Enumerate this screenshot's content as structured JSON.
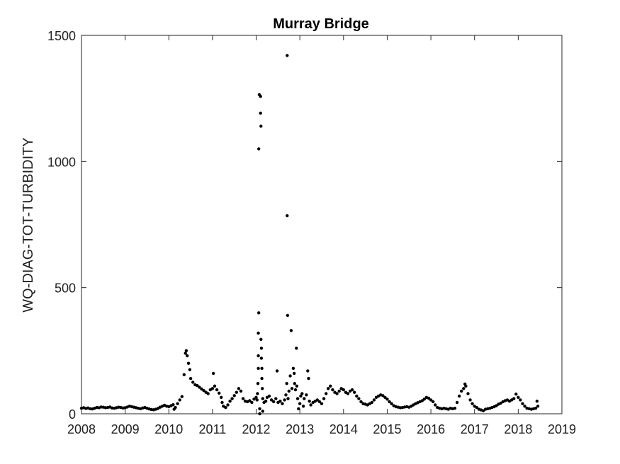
{
  "chart_data": {
    "type": "scatter",
    "title": "Murray Bridge",
    "xlabel": "",
    "ylabel": "WQ-DIAG-TOT-TURBIDITY",
    "xlim": [
      2008,
      2019
    ],
    "ylim": [
      0,
      1500
    ],
    "xticks": [
      "2008",
      "2009",
      "2010",
      "2011",
      "2012",
      "2013",
      "2014",
      "2015",
      "2016",
      "2017",
      "2018",
      "2019"
    ],
    "yticks": [
      "0",
      "500",
      "1000",
      "1500"
    ],
    "grid": false,
    "marker_color": "#000000",
    "series": [
      {
        "points": [
          [
            2008.0,
            22
          ],
          [
            2008.05,
            24
          ],
          [
            2008.1,
            21
          ],
          [
            2008.15,
            23
          ],
          [
            2008.2,
            20
          ],
          [
            2008.25,
            19
          ],
          [
            2008.3,
            22
          ],
          [
            2008.35,
            25
          ],
          [
            2008.4,
            24
          ],
          [
            2008.45,
            27
          ],
          [
            2008.5,
            26
          ],
          [
            2008.55,
            24
          ],
          [
            2008.6,
            25
          ],
          [
            2008.65,
            27
          ],
          [
            2008.7,
            23
          ],
          [
            2008.75,
            22
          ],
          [
            2008.8,
            24
          ],
          [
            2008.85,
            26
          ],
          [
            2008.9,
            25
          ],
          [
            2008.95,
            23
          ],
          [
            2009.0,
            24
          ],
          [
            2009.05,
            27
          ],
          [
            2009.1,
            30
          ],
          [
            2009.15,
            28
          ],
          [
            2009.2,
            26
          ],
          [
            2009.25,
            24
          ],
          [
            2009.3,
            22
          ],
          [
            2009.35,
            20
          ],
          [
            2009.4,
            23
          ],
          [
            2009.45,
            25
          ],
          [
            2009.5,
            22
          ],
          [
            2009.55,
            19
          ],
          [
            2009.6,
            17
          ],
          [
            2009.65,
            16
          ],
          [
            2009.7,
            18
          ],
          [
            2009.75,
            21
          ],
          [
            2009.8,
            26
          ],
          [
            2009.85,
            30
          ],
          [
            2009.9,
            34
          ],
          [
            2009.95,
            30
          ],
          [
            2010.0,
            28
          ],
          [
            2010.05,
            32
          ],
          [
            2010.1,
            36
          ],
          [
            2010.12,
            18
          ],
          [
            2010.15,
            25
          ],
          [
            2010.2,
            40
          ],
          [
            2010.25,
            55
          ],
          [
            2010.3,
            68
          ],
          [
            2010.35,
            155
          ],
          [
            2010.38,
            240
          ],
          [
            2010.4,
            250
          ],
          [
            2010.42,
            230
          ],
          [
            2010.45,
            200
          ],
          [
            2010.48,
            175
          ],
          [
            2010.5,
            140
          ],
          [
            2010.55,
            125
          ],
          [
            2010.6,
            115
          ],
          [
            2010.65,
            112
          ],
          [
            2010.7,
            105
          ],
          [
            2010.75,
            98
          ],
          [
            2010.8,
            92
          ],
          [
            2010.85,
            85
          ],
          [
            2010.9,
            80
          ],
          [
            2010.95,
            95
          ],
          [
            2011.0,
            100
          ],
          [
            2011.02,
            160
          ],
          [
            2011.05,
            110
          ],
          [
            2011.1,
            95
          ],
          [
            2011.15,
            82
          ],
          [
            2011.2,
            65
          ],
          [
            2011.22,
            45
          ],
          [
            2011.25,
            30
          ],
          [
            2011.3,
            25
          ],
          [
            2011.35,
            35
          ],
          [
            2011.4,
            50
          ],
          [
            2011.45,
            60
          ],
          [
            2011.5,
            72
          ],
          [
            2011.55,
            85
          ],
          [
            2011.6,
            100
          ],
          [
            2011.65,
            90
          ],
          [
            2011.7,
            60
          ],
          [
            2011.75,
            50
          ],
          [
            2011.8,
            48
          ],
          [
            2011.85,
            52
          ],
          [
            2011.9,
            45
          ],
          [
            2011.95,
            58
          ],
          [
            2012.0,
            65
          ],
          [
            2012.02,
            55
          ],
          [
            2012.03,
            80
          ],
          [
            2012.04,
            120
          ],
          [
            2012.05,
            180
          ],
          [
            2012.05,
            230
          ],
          [
            2012.05,
            320
          ],
          [
            2012.06,
            400
          ],
          [
            2012.06,
            1050
          ],
          [
            2012.07,
            1265
          ],
          [
            2012.08,
            20
          ],
          [
            2012.08,
            0
          ],
          [
            2012.1,
            1258
          ],
          [
            2012.1,
            1192
          ],
          [
            2012.11,
            1140
          ],
          [
            2012.11,
            295
          ],
          [
            2012.12,
            260
          ],
          [
            2012.12,
            220
          ],
          [
            2012.13,
            180
          ],
          [
            2012.13,
            140
          ],
          [
            2012.14,
            100
          ],
          [
            2012.15,
            60
          ],
          [
            2012.15,
            10
          ],
          [
            2012.18,
            45
          ],
          [
            2012.22,
            50
          ],
          [
            2012.25,
            65
          ],
          [
            2012.3,
            70
          ],
          [
            2012.35,
            55
          ],
          [
            2012.4,
            48
          ],
          [
            2012.45,
            60
          ],
          [
            2012.48,
            170
          ],
          [
            2012.5,
            45
          ],
          [
            2012.55,
            50
          ],
          [
            2012.6,
            40
          ],
          [
            2012.65,
            55
          ],
          [
            2012.68,
            75
          ],
          [
            2012.7,
            120
          ],
          [
            2012.71,
            1420
          ],
          [
            2012.71,
            785
          ],
          [
            2012.72,
            390
          ],
          [
            2012.73,
            60
          ],
          [
            2012.75,
            90
          ],
          [
            2012.78,
            150
          ],
          [
            2012.8,
            330
          ],
          [
            2012.82,
            100
          ],
          [
            2012.85,
            180
          ],
          [
            2012.87,
            160
          ],
          [
            2012.88,
            120
          ],
          [
            2012.9,
            95
          ],
          [
            2012.92,
            260
          ],
          [
            2012.93,
            110
          ],
          [
            2012.95,
            60
          ],
          [
            2012.97,
            20
          ],
          [
            2013.0,
            40
          ],
          [
            2013.02,
            70
          ],
          [
            2013.05,
            80
          ],
          [
            2013.08,
            30
          ],
          [
            2013.1,
            60
          ],
          [
            2013.15,
            75
          ],
          [
            2013.18,
            170
          ],
          [
            2013.2,
            140
          ],
          [
            2013.22,
            50
          ],
          [
            2013.25,
            35
          ],
          [
            2013.3,
            45
          ],
          [
            2013.35,
            50
          ],
          [
            2013.4,
            55
          ],
          [
            2013.45,
            48
          ],
          [
            2013.5,
            40
          ],
          [
            2013.55,
            60
          ],
          [
            2013.6,
            80
          ],
          [
            2013.65,
            100
          ],
          [
            2013.7,
            110
          ],
          [
            2013.75,
            95
          ],
          [
            2013.8,
            85
          ],
          [
            2013.85,
            80
          ],
          [
            2013.9,
            90
          ],
          [
            2013.95,
            100
          ],
          [
            2014.0,
            95
          ],
          [
            2014.05,
            85
          ],
          [
            2014.1,
            80
          ],
          [
            2014.15,
            90
          ],
          [
            2014.2,
            95
          ],
          [
            2014.25,
            85
          ],
          [
            2014.3,
            70
          ],
          [
            2014.35,
            60
          ],
          [
            2014.4,
            48
          ],
          [
            2014.45,
            40
          ],
          [
            2014.5,
            38
          ],
          [
            2014.55,
            35
          ],
          [
            2014.6,
            40
          ],
          [
            2014.65,
            45
          ],
          [
            2014.7,
            55
          ],
          [
            2014.75,
            65
          ],
          [
            2014.8,
            70
          ],
          [
            2014.85,
            75
          ],
          [
            2014.9,
            72
          ],
          [
            2014.95,
            65
          ],
          [
            2015.0,
            58
          ],
          [
            2015.05,
            48
          ],
          [
            2015.1,
            40
          ],
          [
            2015.15,
            32
          ],
          [
            2015.2,
            28
          ],
          [
            2015.25,
            26
          ],
          [
            2015.3,
            24
          ],
          [
            2015.35,
            25
          ],
          [
            2015.4,
            27
          ],
          [
            2015.45,
            28
          ],
          [
            2015.5,
            26
          ],
          [
            2015.55,
            30
          ],
          [
            2015.6,
            35
          ],
          [
            2015.65,
            40
          ],
          [
            2015.7,
            44
          ],
          [
            2015.75,
            48
          ],
          [
            2015.8,
            52
          ],
          [
            2015.85,
            58
          ],
          [
            2015.9,
            65
          ],
          [
            2015.95,
            62
          ],
          [
            2016.0,
            55
          ],
          [
            2016.05,
            48
          ],
          [
            2016.1,
            35
          ],
          [
            2016.15,
            25
          ],
          [
            2016.2,
            22
          ],
          [
            2016.25,
            20
          ],
          [
            2016.3,
            22
          ],
          [
            2016.35,
            20
          ],
          [
            2016.4,
            18
          ],
          [
            2016.45,
            22
          ],
          [
            2016.5,
            20
          ],
          [
            2016.55,
            22
          ],
          [
            2016.6,
            45
          ],
          [
            2016.65,
            70
          ],
          [
            2016.7,
            90
          ],
          [
            2016.75,
            100
          ],
          [
            2016.78,
            118
          ],
          [
            2016.8,
            110
          ],
          [
            2016.85,
            80
          ],
          [
            2016.9,
            55
          ],
          [
            2016.95,
            40
          ],
          [
            2017.0,
            30
          ],
          [
            2017.05,
            25
          ],
          [
            2017.1,
            18
          ],
          [
            2017.15,
            15
          ],
          [
            2017.2,
            12
          ],
          [
            2017.25,
            18
          ],
          [
            2017.3,
            20
          ],
          [
            2017.35,
            22
          ],
          [
            2017.4,
            25
          ],
          [
            2017.45,
            28
          ],
          [
            2017.5,
            32
          ],
          [
            2017.55,
            38
          ],
          [
            2017.6,
            42
          ],
          [
            2017.65,
            48
          ],
          [
            2017.7,
            52
          ],
          [
            2017.75,
            55
          ],
          [
            2017.8,
            50
          ],
          [
            2017.85,
            55
          ],
          [
            2017.9,
            60
          ],
          [
            2017.95,
            78
          ],
          [
            2018.0,
            65
          ],
          [
            2018.05,
            55
          ],
          [
            2018.1,
            40
          ],
          [
            2018.15,
            30
          ],
          [
            2018.2,
            22
          ],
          [
            2018.25,
            20
          ],
          [
            2018.3,
            18
          ],
          [
            2018.35,
            20
          ],
          [
            2018.4,
            22
          ],
          [
            2018.43,
            50
          ],
          [
            2018.45,
            30
          ]
        ]
      }
    ]
  }
}
